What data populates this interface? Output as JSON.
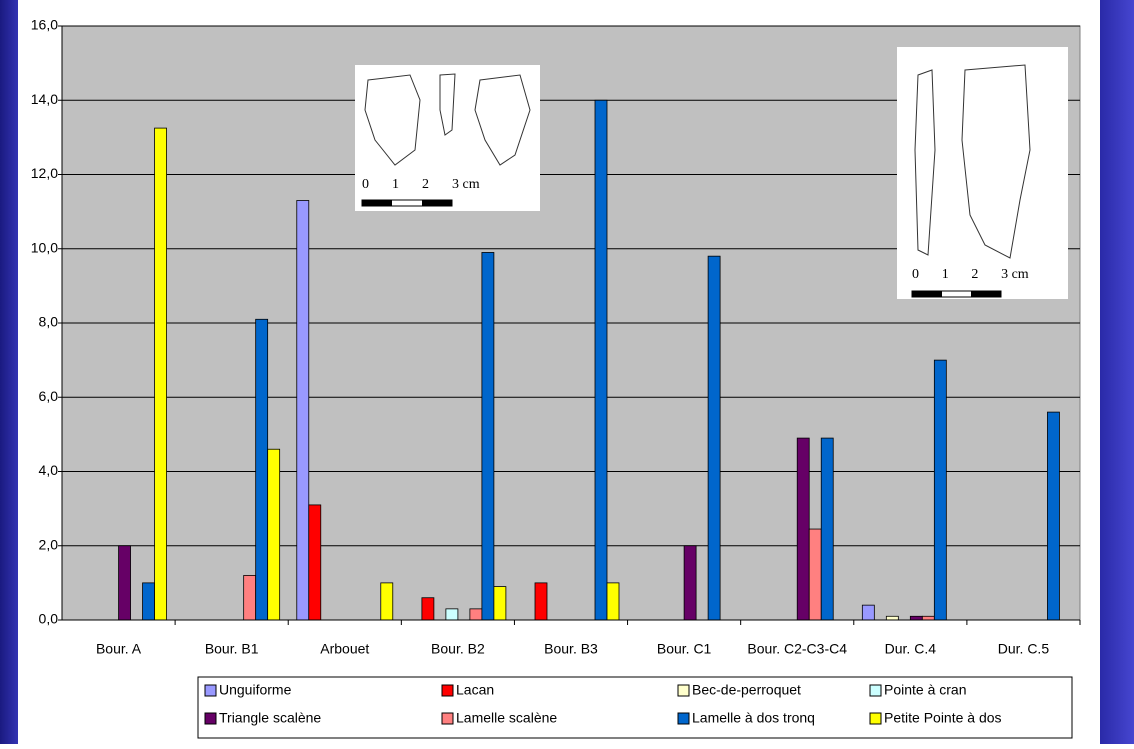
{
  "chart_data": {
    "type": "bar",
    "categories": [
      "Bour. A",
      "Bour. B1",
      "Arbouet",
      "Bour. B2",
      "Bour. B3",
      "Bour. C1",
      "Bour. C2-C3-C4",
      "Dur. C.4",
      "Dur. C.5"
    ],
    "series": [
      {
        "name": "Unguiforme",
        "color": "#9999ff",
        "values": [
          0,
          0,
          11.3,
          0,
          0,
          0,
          0,
          0.4,
          0
        ]
      },
      {
        "name": "Lacan",
        "color": "#ff0000",
        "values": [
          0,
          0,
          3.1,
          0.6,
          1.0,
          0,
          0,
          0,
          0
        ]
      },
      {
        "name": "Bec-de-perroquet",
        "color": "#ffffcc",
        "values": [
          0,
          0,
          0,
          0,
          0,
          0,
          0,
          0.1,
          0
        ]
      },
      {
        "name": "Pointe à cran",
        "color": "#ccffff",
        "values": [
          0,
          0,
          0,
          0.3,
          0,
          0,
          0,
          0,
          0
        ]
      },
      {
        "name": "Triangle scalène",
        "color": "#660066",
        "values": [
          2.0,
          0,
          0,
          0,
          0,
          2.0,
          4.9,
          0.1,
          0
        ]
      },
      {
        "name": "Lamelle scalène",
        "color": "#ff8080",
        "values": [
          0,
          1.2,
          0,
          0.3,
          0,
          0,
          2.45,
          0.1,
          0
        ]
      },
      {
        "name": "Lamelle à dos tronq",
        "color": "#0066cc",
        "values": [
          1.0,
          8.1,
          0,
          9.9,
          14.0,
          9.8,
          4.9,
          7.0,
          5.6
        ]
      },
      {
        "name": "Petite Pointe à dos",
        "color": "#ffff00",
        "values": [
          13.25,
          4.6,
          1.0,
          0.9,
          1.0,
          0,
          0,
          0,
          0
        ]
      }
    ],
    "ylim": [
      0,
      16
    ],
    "yticks": [
      {
        "value": 0,
        "label": "0,0"
      },
      {
        "value": 2,
        "label": "2,0"
      },
      {
        "value": 4,
        "label": "4,0"
      },
      {
        "value": 6,
        "label": "6,0"
      },
      {
        "value": 8,
        "label": "8,0"
      },
      {
        "value": 10,
        "label": "10,0"
      },
      {
        "value": 12,
        "label": "12,0"
      },
      {
        "value": 14,
        "label": "14,0"
      },
      {
        "value": 16,
        "label": "16,0"
      }
    ],
    "grid": true,
    "inset_scales": [
      [
        "0",
        "1",
        "2",
        "3 cm"
      ],
      [
        "0",
        "1",
        "2",
        "3 cm"
      ]
    ]
  }
}
